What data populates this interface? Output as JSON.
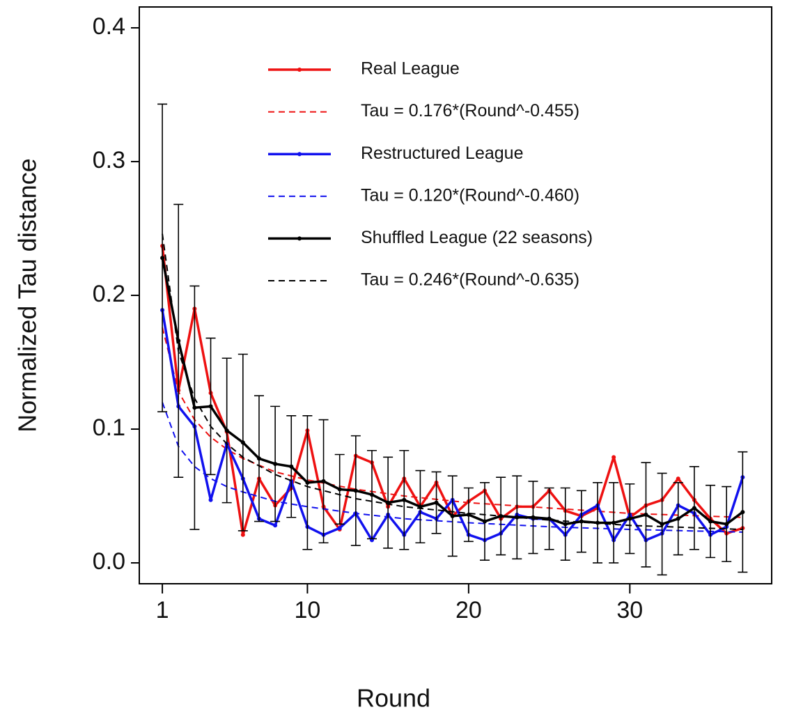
{
  "chart_data": {
    "type": "line",
    "xlabel": "Round",
    "ylabel": "Normalized Tau distance",
    "x": [
      1,
      2,
      3,
      4,
      5,
      6,
      7,
      8,
      9,
      10,
      11,
      12,
      13,
      14,
      15,
      16,
      17,
      18,
      19,
      20,
      21,
      22,
      23,
      24,
      25,
      26,
      27,
      28,
      29,
      30,
      31,
      32,
      33,
      34,
      35,
      36,
      37
    ],
    "xlim": [
      -0.43,
      38.8
    ],
    "ylim": [
      -0.0156,
      0.4156
    ],
    "xticks": [
      1,
      10,
      20,
      30
    ],
    "yticks": [
      {
        "value": 0,
        "label": "0.0"
      },
      0.1,
      0.2,
      0.3,
      0.4
    ],
    "series": [
      {
        "name": "Real League",
        "color": "#ee1111",
        "style": "solid",
        "values": [
          0.237,
          0.129,
          0.19,
          0.127,
          0.098,
          0.021,
          0.063,
          0.043,
          0.056,
          0.099,
          0.042,
          0.025,
          0.08,
          0.075,
          0.042,
          0.063,
          0.042,
          0.06,
          0.035,
          0.046,
          0.054,
          0.033,
          0.042,
          0.042,
          0.054,
          0.039,
          0.035,
          0.041,
          0.079,
          0.034,
          0.043,
          0.047,
          0.063,
          0.047,
          0.033,
          0.022,
          0.026
        ]
      },
      {
        "name": "Tau = 0.176*(Round^-0.455)",
        "color": "#ee1111",
        "style": "dashed",
        "x": [
          1,
          2,
          3,
          4,
          5,
          6,
          8,
          10,
          13,
          16,
          20,
          25,
          30,
          37
        ],
        "values": [
          0.176,
          0.128,
          0.107,
          0.094,
          0.085,
          0.078,
          0.068,
          0.062,
          0.055,
          0.05,
          0.045,
          0.041,
          0.037,
          0.034
        ]
      },
      {
        "name": "Restructured League",
        "color": "#1111ee",
        "style": "solid",
        "values": [
          0.189,
          0.117,
          0.102,
          0.047,
          0.089,
          0.063,
          0.033,
          0.028,
          0.061,
          0.027,
          0.021,
          0.026,
          0.037,
          0.017,
          0.036,
          0.021,
          0.038,
          0.033,
          0.047,
          0.021,
          0.017,
          0.022,
          0.036,
          0.033,
          0.033,
          0.021,
          0.036,
          0.043,
          0.017,
          0.036,
          0.017,
          0.022,
          0.043,
          0.037,
          0.021,
          0.027,
          0.064
        ]
      },
      {
        "name": "Tau = 0.120*(Round^-0.460)",
        "color": "#1111ee",
        "style": "dashed",
        "x": [
          1,
          2,
          3,
          4,
          5,
          6,
          8,
          10,
          13,
          16,
          20,
          25,
          30,
          37
        ],
        "values": [
          0.12,
          0.087,
          0.072,
          0.063,
          0.057,
          0.053,
          0.046,
          0.042,
          0.037,
          0.033,
          0.03,
          0.027,
          0.025,
          0.023
        ]
      },
      {
        "name": "Shuffled League (22 seasons)",
        "color": "#000000",
        "style": "solid",
        "values": [
          0.228,
          0.166,
          0.116,
          0.117,
          0.099,
          0.09,
          0.078,
          0.074,
          0.072,
          0.06,
          0.061,
          0.055,
          0.054,
          0.051,
          0.045,
          0.047,
          0.042,
          0.045,
          0.035,
          0.036,
          0.031,
          0.035,
          0.034,
          0.034,
          0.033,
          0.029,
          0.031,
          0.03,
          0.03,
          0.033,
          0.036,
          0.029,
          0.033,
          0.041,
          0.031,
          0.029,
          0.038
        ],
        "errors": [
          0.115,
          0.102,
          0.091,
          0.051,
          0.054,
          0.066,
          0.047,
          0.043,
          0.038,
          0.05,
          0.046,
          0.026,
          0.041,
          0.033,
          0.034,
          0.037,
          0.027,
          0.023,
          0.03,
          0.02,
          0.029,
          0.029,
          0.031,
          0.027,
          0.023,
          0.027,
          0.023,
          0.03,
          0.03,
          0.026,
          0.039,
          0.038,
          0.027,
          0.031,
          0.027,
          0.028,
          0.045
        ]
      },
      {
        "name": "Tau = 0.246*(Round^-0.635)",
        "color": "#000000",
        "style": "dashed",
        "x": [
          1,
          2,
          3,
          4,
          5,
          6,
          8,
          10,
          13,
          16,
          20,
          25,
          30,
          37
        ],
        "values": [
          0.246,
          0.158,
          0.123,
          0.102,
          0.089,
          0.079,
          0.066,
          0.057,
          0.048,
          0.042,
          0.037,
          0.032,
          0.028,
          0.025
        ]
      }
    ]
  }
}
